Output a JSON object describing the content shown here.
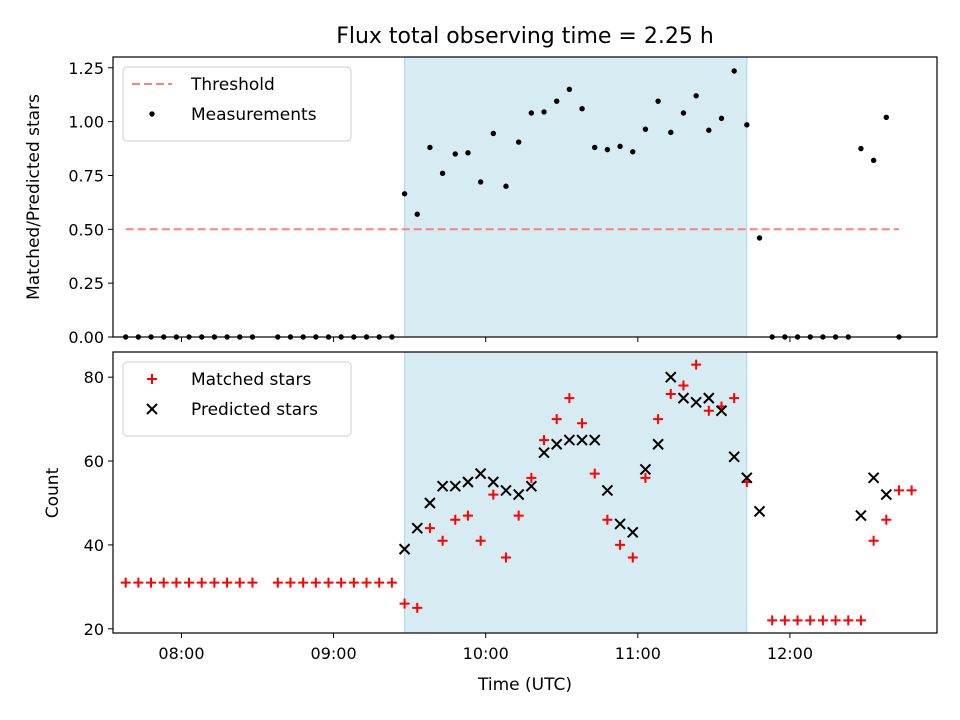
{
  "chart_data": {
    "type": "scatter",
    "title": "Flux total observing time = 2.25 h",
    "xlabel": "Time (UTC)",
    "xlim": [
      "07:33",
      "12:58"
    ],
    "x_ticks": [
      "08:00",
      "09:00",
      "10:00",
      "11:00",
      "12:00"
    ],
    "shaded_interval": [
      "09:28",
      "11:43"
    ],
    "shade_color": "#add8e6",
    "grid": false,
    "panels": [
      {
        "ylabel": "Matched/Predicted stars",
        "ylim": [
          0,
          1.3
        ],
        "y_ticks": [
          "0.00",
          "0.25",
          "0.50",
          "0.75",
          "1.00",
          "1.25"
        ],
        "legend_position": "upper-left",
        "threshold": {
          "name": "Threshold",
          "value": 0.5,
          "from": "07:38",
          "to": "12:43",
          "color": "#ff7f7f"
        },
        "series": [
          {
            "name": "Measurements",
            "marker": "dot",
            "color": "#000000",
            "points": [
              [
                "07:38",
                0
              ],
              [
                "07:43",
                0
              ],
              [
                "07:48",
                0
              ],
              [
                "07:53",
                0
              ],
              [
                "07:58",
                0
              ],
              [
                "08:03",
                0
              ],
              [
                "08:08",
                0
              ],
              [
                "08:13",
                0
              ],
              [
                "08:18",
                0
              ],
              [
                "08:23",
                0
              ],
              [
                "08:28",
                0
              ],
              [
                "08:38",
                0
              ],
              [
                "08:43",
                0
              ],
              [
                "08:48",
                0
              ],
              [
                "08:53",
                0
              ],
              [
                "08:58",
                0
              ],
              [
                "09:03",
                0
              ],
              [
                "09:08",
                0
              ],
              [
                "09:13",
                0
              ],
              [
                "09:18",
                0
              ],
              [
                "09:23",
                0
              ],
              [
                "09:28",
                0.665
              ],
              [
                "09:33",
                0.57
              ],
              [
                "09:38",
                0.88
              ],
              [
                "09:43",
                0.76
              ],
              [
                "09:48",
                0.85
              ],
              [
                "09:53",
                0.855
              ],
              [
                "09:58",
                0.72
              ],
              [
                "10:03",
                0.945
              ],
              [
                "10:08",
                0.7
              ],
              [
                "10:13",
                0.905
              ],
              [
                "10:18",
                1.04
              ],
              [
                "10:23",
                1.045
              ],
              [
                "10:28",
                1.095
              ],
              [
                "10:33",
                1.15
              ],
              [
                "10:38",
                1.06
              ],
              [
                "10:43",
                0.88
              ],
              [
                "10:48",
                0.87
              ],
              [
                "10:53",
                0.885
              ],
              [
                "10:58",
                0.86
              ],
              [
                "11:03",
                0.965
              ],
              [
                "11:08",
                1.095
              ],
              [
                "11:13",
                0.95
              ],
              [
                "11:18",
                1.04
              ],
              [
                "11:23",
                1.12
              ],
              [
                "11:28",
                0.96
              ],
              [
                "11:33",
                1.015
              ],
              [
                "11:38",
                1.235
              ],
              [
                "11:43",
                0.985
              ],
              [
                "11:48",
                0.46
              ],
              [
                "11:53",
                0
              ],
              [
                "11:58",
                0
              ],
              [
                "12:03",
                0
              ],
              [
                "12:08",
                0
              ],
              [
                "12:13",
                0
              ],
              [
                "12:18",
                0
              ],
              [
                "12:23",
                0
              ],
              [
                "12:28",
                0.875
              ],
              [
                "12:33",
                0.82
              ],
              [
                "12:38",
                1.02
              ],
              [
                "12:43",
                0
              ]
            ]
          }
        ]
      },
      {
        "ylabel": "Count",
        "ylim": [
          19,
          86
        ],
        "y_ticks": [
          "20",
          "40",
          "60",
          "80"
        ],
        "legend_position": "upper-left",
        "series": [
          {
            "name": "Matched stars",
            "marker": "plus",
            "color": "#ff0000",
            "points": [
              [
                "07:38",
                31
              ],
              [
                "07:43",
                31
              ],
              [
                "07:48",
                31
              ],
              [
                "07:53",
                31
              ],
              [
                "07:58",
                31
              ],
              [
                "08:03",
                31
              ],
              [
                "08:08",
                31
              ],
              [
                "08:13",
                31
              ],
              [
                "08:18",
                31
              ],
              [
                "08:23",
                31
              ],
              [
                "08:28",
                31
              ],
              [
                "08:38",
                31
              ],
              [
                "08:43",
                31
              ],
              [
                "08:48",
                31
              ],
              [
                "08:53",
                31
              ],
              [
                "08:58",
                31
              ],
              [
                "09:03",
                31
              ],
              [
                "09:08",
                31
              ],
              [
                "09:13",
                31
              ],
              [
                "09:18",
                31
              ],
              [
                "09:23",
                31
              ],
              [
                "09:28",
                26
              ],
              [
                "09:33",
                25
              ],
              [
                "09:38",
                44
              ],
              [
                "09:43",
                41
              ],
              [
                "09:48",
                46
              ],
              [
                "09:53",
                47
              ],
              [
                "09:58",
                41
              ],
              [
                "10:03",
                52
              ],
              [
                "10:08",
                37
              ],
              [
                "10:13",
                47
              ],
              [
                "10:18",
                56
              ],
              [
                "10:23",
                65
              ],
              [
                "10:28",
                70
              ],
              [
                "10:33",
                75
              ],
              [
                "10:38",
                69
              ],
              [
                "10:43",
                57
              ],
              [
                "10:48",
                46
              ],
              [
                "10:53",
                40
              ],
              [
                "10:58",
                37
              ],
              [
                "11:03",
                56
              ],
              [
                "11:08",
                70
              ],
              [
                "11:13",
                76
              ],
              [
                "11:18",
                78
              ],
              [
                "11:23",
                83
              ],
              [
                "11:28",
                72
              ],
              [
                "11:33",
                73
              ],
              [
                "11:38",
                75
              ],
              [
                "11:43",
                55
              ],
              [
                "11:53",
                22
              ],
              [
                "11:58",
                22
              ],
              [
                "12:03",
                22
              ],
              [
                "12:08",
                22
              ],
              [
                "12:13",
                22
              ],
              [
                "12:18",
                22
              ],
              [
                "12:23",
                22
              ],
              [
                "12:28",
                22
              ],
              [
                "12:33",
                41
              ],
              [
                "12:38",
                46
              ],
              [
                "12:43",
                53
              ],
              [
                "12:48",
                53
              ]
            ]
          },
          {
            "name": "Predicted stars",
            "marker": "x",
            "color": "#000000",
            "points": [
              [
                "09:28",
                39
              ],
              [
                "09:33",
                44
              ],
              [
                "09:38",
                50
              ],
              [
                "09:43",
                54
              ],
              [
                "09:48",
                54
              ],
              [
                "09:53",
                55
              ],
              [
                "09:58",
                57
              ],
              [
                "10:03",
                55
              ],
              [
                "10:08",
                53
              ],
              [
                "10:13",
                52
              ],
              [
                "10:18",
                54
              ],
              [
                "10:23",
                62
              ],
              [
                "10:28",
                64
              ],
              [
                "10:33",
                65
              ],
              [
                "10:38",
                65
              ],
              [
                "10:43",
                65
              ],
              [
                "10:48",
                53
              ],
              [
                "10:53",
                45
              ],
              [
                "10:58",
                43
              ],
              [
                "11:03",
                58
              ],
              [
                "11:08",
                64
              ],
              [
                "11:13",
                80
              ],
              [
                "11:18",
                75
              ],
              [
                "11:23",
                74
              ],
              [
                "11:28",
                75
              ],
              [
                "11:33",
                72
              ],
              [
                "11:38",
                61
              ],
              [
                "11:43",
                56
              ],
              [
                "11:48",
                48
              ],
              [
                "12:28",
                47
              ],
              [
                "12:33",
                56
              ],
              [
                "12:38",
                52
              ]
            ]
          }
        ]
      }
    ]
  }
}
